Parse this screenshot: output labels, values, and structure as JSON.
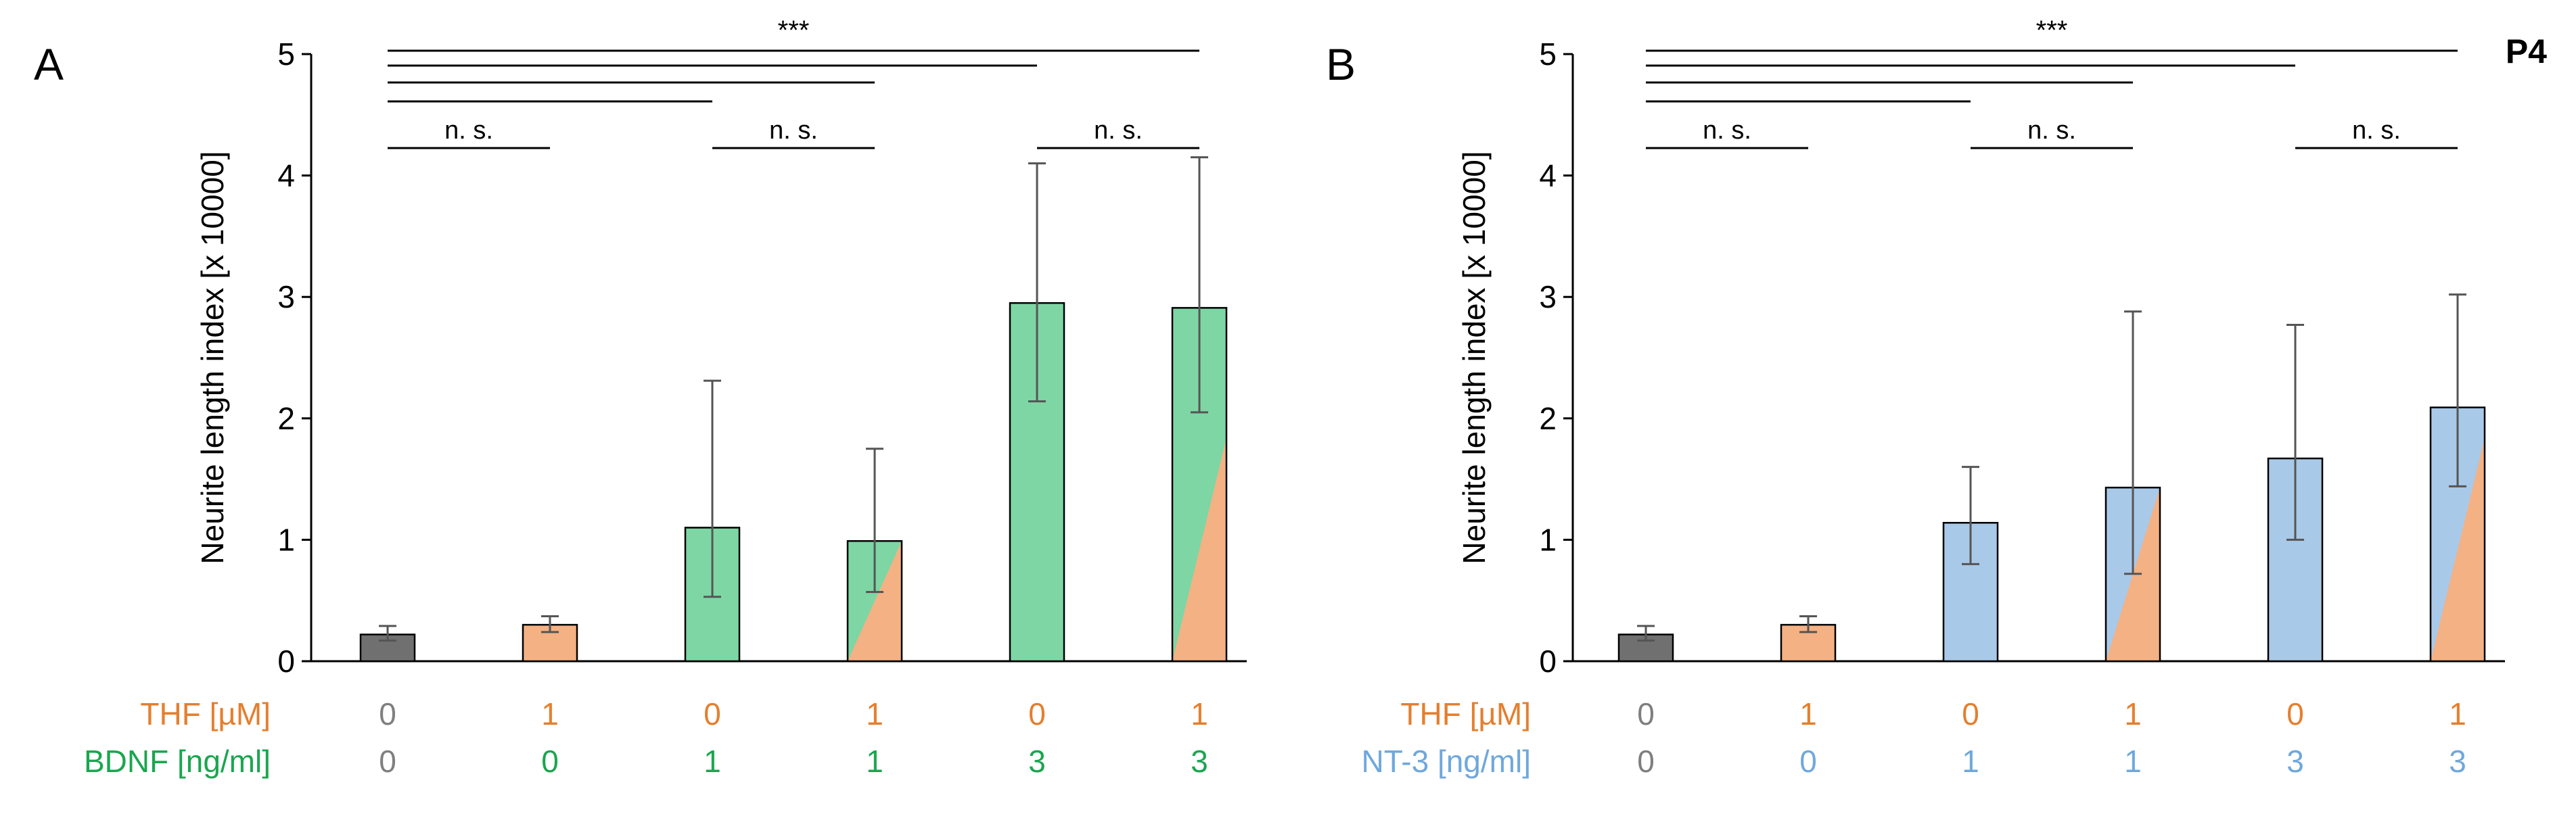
{
  "figure_label": "P4",
  "colors": {
    "control": "#707070",
    "thf": "#f4b183",
    "bdnf": "#7ed6a4",
    "nt3": "#a9c9e8",
    "thf_text": "#e47f2e",
    "bdnf_text": "#1aa64f",
    "nt3_text": "#6fa8dc",
    "control_text": "#7f7f7f",
    "axis": "#000000",
    "error_bar": "#555555"
  },
  "chart_data": [
    {
      "type": "bar",
      "panel_label": "A",
      "title": "",
      "ylabel": "Neurite length index [x 10000]",
      "ylim": [
        0,
        5
      ],
      "yticks": [
        0,
        1,
        2,
        3,
        4,
        5
      ],
      "categories": [
        "THF 0 / BDNF 0",
        "THF 1 / BDNF 0",
        "THF 0 / BDNF 1",
        "THF 1 / BDNF 1",
        "THF 0 / BDNF 3",
        "THF 1 / BDNF 3"
      ],
      "values": [
        0.22,
        0.3,
        1.1,
        0.99,
        2.95,
        2.91
      ],
      "error_low": [
        0.17,
        0.24,
        0.53,
        0.57,
        2.14,
        2.05
      ],
      "error_high": [
        0.29,
        0.37,
        2.31,
        1.75,
        4.1,
        4.15
      ],
      "fill": [
        "control",
        "thf",
        "bdnf",
        "bdnf+thf",
        "bdnf",
        "bdnf+thf"
      ],
      "rows": [
        {
          "label": "THF [µM]",
          "label_color": "thf_text",
          "values": [
            "0",
            "1",
            "0",
            "1",
            "0",
            "1"
          ],
          "colors": [
            "control_text",
            "thf_text",
            "thf_text",
            "thf_text",
            "thf_text",
            "thf_text"
          ]
        },
        {
          "label": "BDNF [ng/ml]",
          "label_color": "bdnf_text",
          "values": [
            "0",
            "0",
            "1",
            "1",
            "3",
            "3"
          ],
          "colors": [
            "control_text",
            "bdnf_text",
            "bdnf_text",
            "bdnf_text",
            "bdnf_text",
            "bdnf_text"
          ]
        }
      ],
      "significance": {
        "label": "***",
        "lines": [
          {
            "to": 5
          },
          {
            "to": 4
          },
          {
            "to": 3
          },
          {
            "to": 2
          }
        ],
        "ns_pairs": [
          {
            "from": 0,
            "to": 1,
            "label": "n. s."
          },
          {
            "from": 2,
            "to": 3,
            "label": "n. s."
          },
          {
            "from": 4,
            "to": 5,
            "label": "n. s."
          }
        ]
      }
    },
    {
      "type": "bar",
      "panel_label": "B",
      "title": "",
      "ylabel": "Neurite length index [x 10000]",
      "ylim": [
        0,
        5
      ],
      "yticks": [
        0,
        1,
        2,
        3,
        4,
        5
      ],
      "categories": [
        "THF 0 / NT-3 0",
        "THF 1 / NT-3 0",
        "THF 0 / NT-3 1",
        "THF 1 / NT-3 1",
        "THF 0 / NT-3 3",
        "THF 1 / NT-3 3"
      ],
      "values": [
        0.22,
        0.3,
        1.14,
        1.43,
        1.67,
        2.09
      ],
      "error_low": [
        0.17,
        0.24,
        0.8,
        0.72,
        1.0,
        1.44
      ],
      "error_high": [
        0.29,
        0.37,
        1.6,
        2.88,
        2.77,
        3.02
      ],
      "fill": [
        "control",
        "thf",
        "nt3",
        "nt3+thf",
        "nt3",
        "nt3+thf"
      ],
      "rows": [
        {
          "label": "THF [µM]",
          "label_color": "thf_text",
          "values": [
            "0",
            "1",
            "0",
            "1",
            "0",
            "1"
          ],
          "colors": [
            "control_text",
            "thf_text",
            "thf_text",
            "thf_text",
            "thf_text",
            "thf_text"
          ]
        },
        {
          "label": "NT-3 [ng/ml]",
          "label_color": "nt3_text",
          "values": [
            "0",
            "0",
            "1",
            "1",
            "3",
            "3"
          ],
          "colors": [
            "control_text",
            "nt3_text",
            "nt3_text",
            "nt3_text",
            "nt3_text",
            "nt3_text"
          ]
        }
      ],
      "significance": {
        "label": "***",
        "lines": [
          {
            "to": 5
          },
          {
            "to": 4
          },
          {
            "to": 3
          },
          {
            "to": 2
          }
        ],
        "ns_pairs": [
          {
            "from": 0,
            "to": 1,
            "label": "n. s."
          },
          {
            "from": 2,
            "to": 3,
            "label": "n. s."
          },
          {
            "from": 4,
            "to": 5,
            "label": "n. s."
          }
        ]
      }
    }
  ]
}
